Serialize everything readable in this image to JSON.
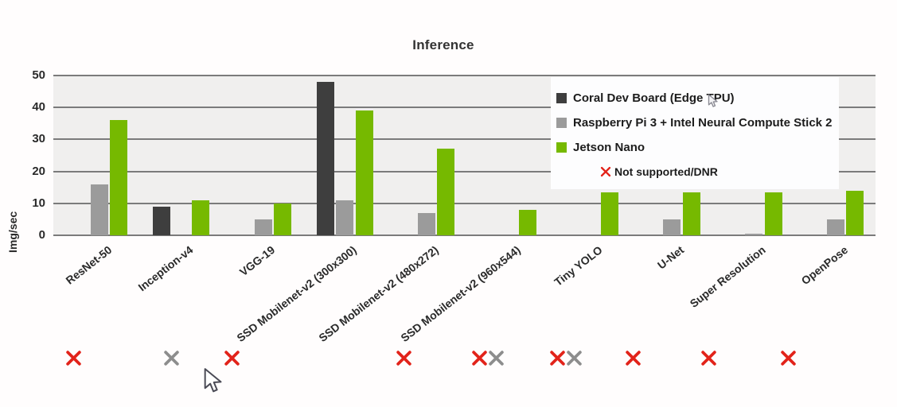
{
  "chart_data": {
    "type": "bar",
    "title": "Inference",
    "ylabel": "Img/sec",
    "ylim": [
      0,
      50
    ],
    "yticks": [
      0,
      10,
      20,
      30,
      40,
      50
    ],
    "grid": true,
    "legend_position": "upper right",
    "categories": [
      "ResNet-50",
      "Inception-v4",
      "VGG-19",
      "SSD Mobilenet-v2 (300x300)",
      "SSD Mobilenet-v2 (480x272)",
      "SSD Mobilenet-v2 (960x544)",
      "Tiny YOLO",
      "U-Net",
      "Super Resolution",
      "OpenPose"
    ],
    "series": [
      {
        "name": "Coral Dev Board (Edge TPU)",
        "color": "#3e3e3e",
        "dnr_mark_color": "#e2231a",
        "values": [
          null,
          9,
          null,
          48,
          null,
          null,
          null,
          null,
          null,
          null
        ]
      },
      {
        "name": "Raspberry Pi 3 + Intel Neural Compute Stick 2",
        "color": "#9b9b9b",
        "dnr_mark_color": "#8d8d8d",
        "values": [
          16,
          null,
          5,
          11,
          7,
          null,
          null,
          5,
          0.5,
          5
        ]
      },
      {
        "name": "Jetson Nano",
        "color": "#76b900",
        "dnr_mark_color": null,
        "values": [
          36,
          11,
          10,
          39,
          27,
          8,
          13.5,
          13.5,
          13.5,
          14
        ]
      }
    ],
    "dnr_legend_label": "Not supported/DNR",
    "dnr_legend_color": "#e2231a",
    "dnr_marks": [
      {
        "category_index": 0,
        "series_index": 0
      },
      {
        "category_index": 1,
        "series_index": 1
      },
      {
        "category_index": 2,
        "series_index": 0
      },
      {
        "category_index": 4,
        "series_index": 0
      },
      {
        "category_index": 5,
        "series_index": 0
      },
      {
        "category_index": 5,
        "series_index": 1
      },
      {
        "category_index": 6,
        "series_index": 0
      },
      {
        "category_index": 6,
        "series_index": 1
      },
      {
        "category_index": 7,
        "series_index": 0
      },
      {
        "category_index": 8,
        "series_index": 0
      },
      {
        "category_index": 9,
        "series_index": 0
      }
    ]
  }
}
